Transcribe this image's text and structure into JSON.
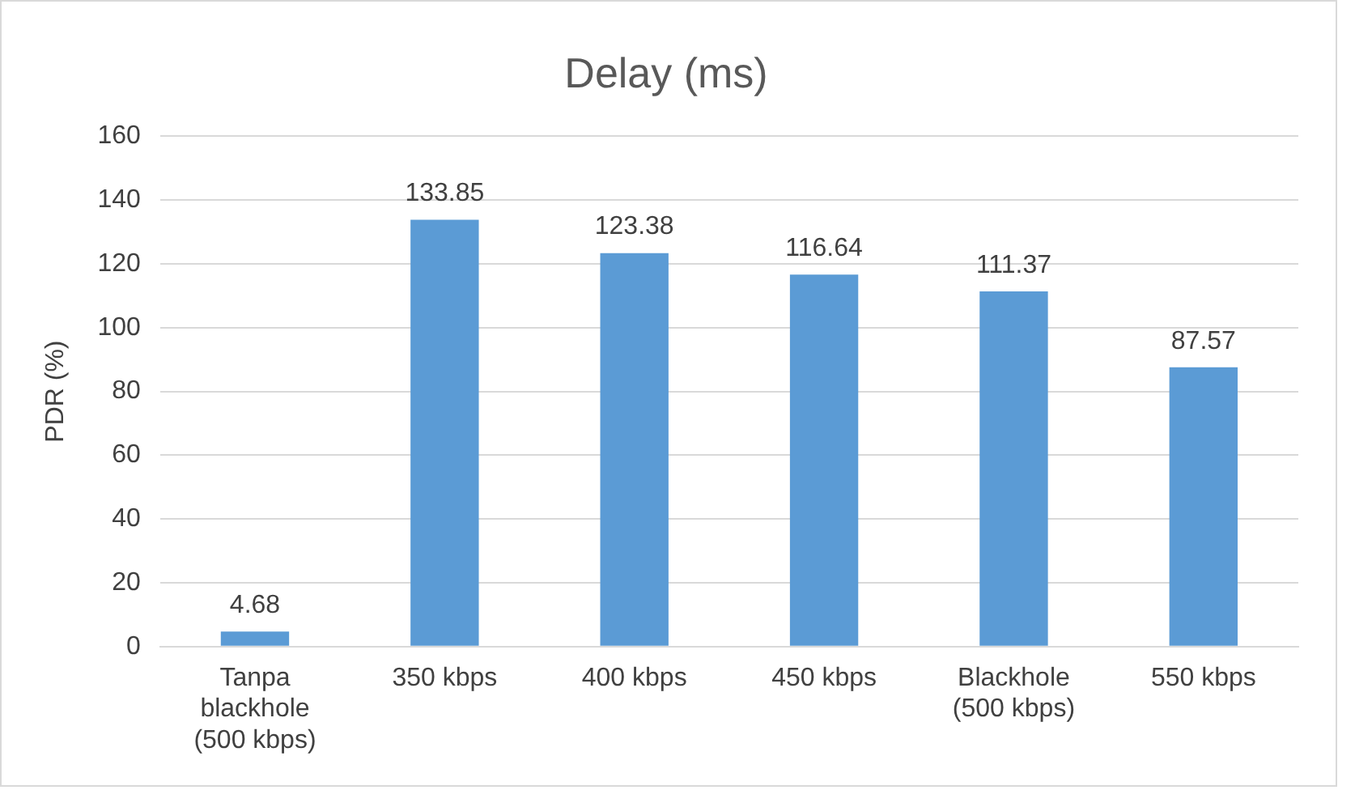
{
  "chart_data": {
    "type": "bar",
    "title": "Delay (ms)",
    "ylabel": "PDR (%)",
    "categories": [
      "Tanpa blackhole (500 kbps)",
      "350 kbps",
      "400 kbps",
      "450 kbps",
      "Blackhole (500 kbps)",
      "550 kbps"
    ],
    "values": [
      4.68,
      133.85,
      123.38,
      116.64,
      111.37,
      87.57
    ],
    "color": "#5b9bd5",
    "ylim": [
      0,
      160
    ],
    "yticks": [
      0,
      20,
      40,
      60,
      80,
      100,
      120,
      140,
      160
    ],
    "grid": "y",
    "legend": false,
    "data_labels": true
  }
}
